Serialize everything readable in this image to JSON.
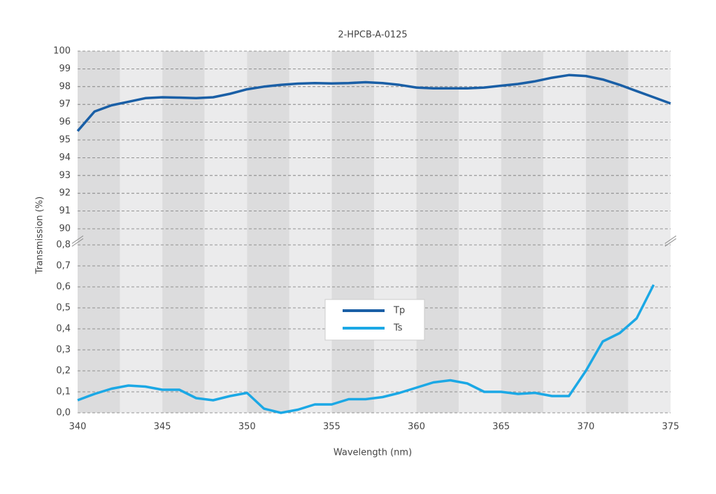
{
  "chart_data": [
    {
      "type": "line",
      "title": "2-HPCB-A-0125",
      "x": [
        340,
        341,
        342,
        343,
        344,
        345,
        346,
        347,
        348,
        349,
        350,
        351,
        352,
        353,
        354,
        355,
        356,
        357,
        358,
        359,
        360,
        361,
        362,
        363,
        364,
        365,
        366,
        367,
        368,
        369,
        370,
        371,
        372,
        373,
        374,
        375
      ],
      "series": [
        {
          "name": "Tp",
          "color": "#1a5fa6",
          "values": [
            95.5,
            96.6,
            96.95,
            97.15,
            97.35,
            97.4,
            97.38,
            97.35,
            97.4,
            97.6,
            97.85,
            98.0,
            98.1,
            98.17,
            98.2,
            98.18,
            98.2,
            98.25,
            98.2,
            98.1,
            97.95,
            97.9,
            97.9,
            97.9,
            97.95,
            98.05,
            98.15,
            98.3,
            98.5,
            98.65,
            98.6,
            98.4,
            98.1,
            97.75,
            97.4,
            97.05
          ]
        }
      ],
      "ylim": [
        90,
        100
      ],
      "yticks": [
        90,
        91,
        92,
        93,
        94,
        95,
        96,
        97,
        98,
        99,
        100
      ],
      "grid": true
    },
    {
      "type": "line",
      "xlabel": "Wavelength (nm)",
      "ylabel": "Transmission (%)",
      "x": [
        340,
        341,
        342,
        343,
        344,
        345,
        346,
        347,
        348,
        349,
        350,
        351,
        352,
        353,
        354,
        355,
        356,
        357,
        358,
        359,
        360,
        361,
        362,
        363,
        364,
        365,
        366,
        367,
        368,
        369,
        370,
        371,
        372,
        373,
        374,
        375
      ],
      "series": [
        {
          "name": "Ts",
          "color": "#1ba8e5",
          "values": [
            0.06,
            0.09,
            0.115,
            0.13,
            0.125,
            0.11,
            0.11,
            0.07,
            0.06,
            0.08,
            0.095,
            0.02,
            0.0,
            0.015,
            0.04,
            0.04,
            0.065,
            0.065,
            0.075,
            0.095,
            0.12,
            0.145,
            0.155,
            0.14,
            0.1,
            0.1,
            0.09,
            0.095,
            0.08,
            0.08,
            0.2,
            0.34,
            0.38,
            0.45,
            0.61,
            null
          ]
        }
      ],
      "xlim": [
        340,
        375
      ],
      "xticks": [
        340,
        345,
        350,
        355,
        360,
        365,
        370,
        375
      ],
      "ylim": [
        0,
        0.8
      ],
      "yticks": [
        {
          "value": 0,
          "label": "0,0"
        },
        {
          "value": 0.1,
          "label": "0,1"
        },
        {
          "value": 0.2,
          "label": "0,2"
        },
        {
          "value": 0.3,
          "label": "0,3"
        },
        {
          "value": 0.4,
          "label": "0,4"
        },
        {
          "value": 0.5,
          "label": "0,5"
        },
        {
          "value": 0.6,
          "label": "0,6"
        },
        {
          "value": 0.7,
          "label": "0,7"
        },
        {
          "value": 0.8,
          "label": "0,8"
        }
      ],
      "grid": true
    }
  ]
}
